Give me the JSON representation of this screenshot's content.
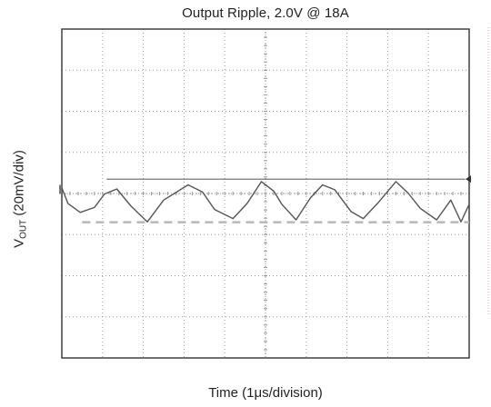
{
  "chart_data": {
    "type": "line",
    "title": "Output Ripple, 2.0V @ 18A",
    "xlabel": "Time (1μs/division)",
    "ylabel_main": "V",
    "ylabel_sub": "OUT",
    "ylabel_rest": " (20mV/div)",
    "x_divisions": 10,
    "y_divisions": 8,
    "grid": true,
    "xlim": [
      0,
      10
    ],
    "ylim": [
      -4,
      4
    ],
    "series": [
      {
        "values_description": "triangular ripple waveform, approx 1.2 div peak-to-peak, period approx 2 div",
        "x": [
          0.0,
          0.15,
          0.45,
          0.8,
          1.05,
          1.35,
          1.7,
          2.1,
          2.5,
          3.1,
          3.45,
          3.75,
          4.2,
          4.55,
          4.9,
          5.2,
          5.4,
          5.75,
          6.1,
          6.4,
          6.7,
          7.1,
          7.4,
          7.75,
          8.2,
          8.5,
          8.8,
          9.2,
          9.55,
          9.8,
          10.0
        ],
        "y": [
          0.1,
          -0.2,
          -0.5,
          -0.3,
          -0.05,
          0.15,
          -0.35,
          -0.65,
          -0.2,
          0.25,
          0.0,
          -0.35,
          -0.65,
          -0.2,
          0.25,
          0.1,
          -0.3,
          -0.6,
          -0.15,
          0.25,
          0.05,
          -0.4,
          -0.65,
          -0.2,
          0.25,
          0.05,
          -0.4,
          -0.6,
          -0.2,
          -0.65,
          -0.3
        ]
      }
    ],
    "reference_lines": [
      {
        "style": "solid",
        "y": 0.35
      },
      {
        "style": "dashed",
        "y": -0.7
      }
    ],
    "colors": {
      "trace": "#555555",
      "grid": "#9a9a9a",
      "frame": "#333333",
      "dashed": "#b8b8b8"
    }
  }
}
